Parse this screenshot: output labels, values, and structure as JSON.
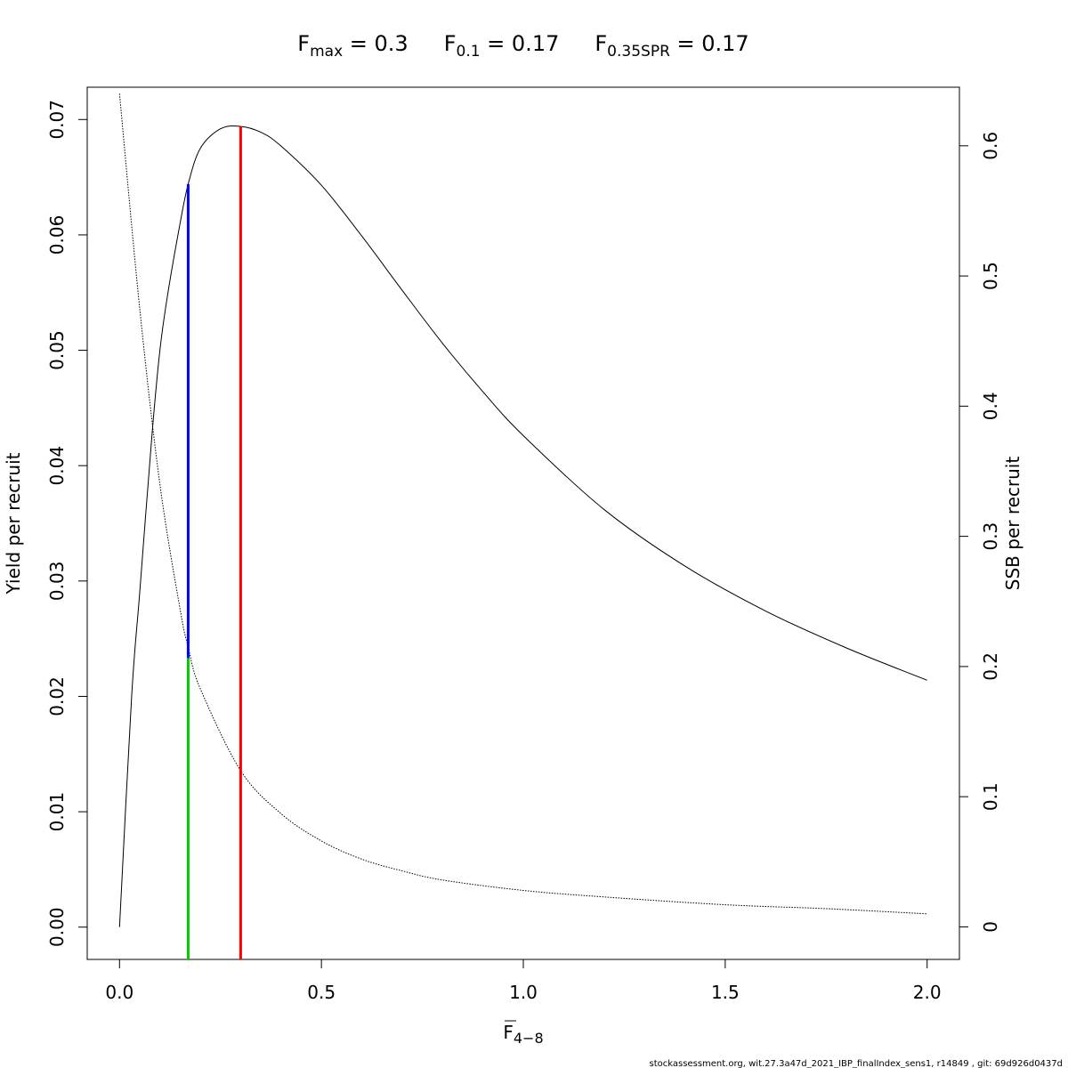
{
  "chart_data": {
    "type": "line",
    "title": {
      "fmax": {
        "main": "F",
        "sub": "max",
        "rest": " = 0.3"
      },
      "f01": {
        "main": "F",
        "sub": "0.1",
        "rest": " = 0.17"
      },
      "fspr": {
        "main": "F",
        "sub": "0.35SPR",
        "rest": " = 0.17"
      }
    },
    "xlabel": {
      "main": "F",
      "sub": "4−8"
    },
    "ylabel_left": "Yield per recruit",
    "ylabel_right": "SSB per recruit",
    "xlim": [
      -0.08,
      2.08
    ],
    "ylim_left": [
      -0.0028,
      0.0728
    ],
    "ylim_right": [
      -0.025,
      0.645
    ],
    "x_ticks": [
      {
        "value": 0.0,
        "label": "0.0"
      },
      {
        "value": 0.5,
        "label": "0.5"
      },
      {
        "value": 1.0,
        "label": "1.0"
      },
      {
        "value": 1.5,
        "label": "1.5"
      },
      {
        "value": 2.0,
        "label": "2.0"
      }
    ],
    "y_left_ticks": [
      {
        "value": 0.0,
        "label": "0.00"
      },
      {
        "value": 0.01,
        "label": "0.01"
      },
      {
        "value": 0.02,
        "label": "0.02"
      },
      {
        "value": 0.03,
        "label": "0.03"
      },
      {
        "value": 0.04,
        "label": "0.04"
      },
      {
        "value": 0.05,
        "label": "0.05"
      },
      {
        "value": 0.06,
        "label": "0.06"
      },
      {
        "value": 0.07,
        "label": "0.07"
      }
    ],
    "y_right_ticks": [
      {
        "value": 0.0,
        "label": "0"
      },
      {
        "value": 0.1,
        "label": "0.1"
      },
      {
        "value": 0.2,
        "label": "0.2"
      },
      {
        "value": 0.3,
        "label": "0.3"
      },
      {
        "value": 0.4,
        "label": "0.4"
      },
      {
        "value": 0.5,
        "label": "0.5"
      },
      {
        "value": 0.6,
        "label": "0.6"
      }
    ],
    "series": [
      {
        "axis": "left",
        "style": "solid",
        "color": "#000000",
        "x": [
          0.0,
          0.03,
          0.05,
          0.08,
          0.1,
          0.12,
          0.15,
          0.17,
          0.2,
          0.25,
          0.3,
          0.35,
          0.4,
          0.5,
          0.6,
          0.7,
          0.8,
          0.9,
          1.0,
          1.2,
          1.4,
          1.6,
          1.8,
          2.0
        ],
        "y": [
          0.0,
          0.02,
          0.029,
          0.0425,
          0.05,
          0.055,
          0.061,
          0.0644,
          0.0675,
          0.0692,
          0.0694,
          0.0689,
          0.0677,
          0.0643,
          0.0599,
          0.0552,
          0.0506,
          0.0464,
          0.0426,
          0.0362,
          0.0313,
          0.0274,
          0.0242,
          0.0214
        ]
      },
      {
        "axis": "right",
        "style": "dotted",
        "color": "#000000",
        "x": [
          0.0,
          0.05,
          0.1,
          0.15,
          0.17,
          0.2,
          0.3,
          0.4,
          0.5,
          0.6,
          0.7,
          0.8,
          1.0,
          1.2,
          1.5,
          1.75,
          2.0
        ],
        "y": [
          0.64,
          0.475,
          0.34,
          0.244,
          0.215,
          0.183,
          0.12,
          0.087,
          0.066,
          0.052,
          0.043,
          0.036,
          0.028,
          0.023,
          0.017,
          0.014,
          0.01
        ]
      }
    ],
    "reference_lines": [
      {
        "name": "F0.1",
        "x": 0.17,
        "from_left": 0.0233,
        "to_left": 0.0644,
        "color": "#0000ff"
      },
      {
        "name": "F0.35SPR",
        "x": 0.17,
        "from_left": -0.0028,
        "to_left": 0.0233,
        "color": "#00cc00"
      },
      {
        "name": "Fmax",
        "x": 0.3,
        "from_left": -0.0028,
        "to_left": 0.0694,
        "color": "#ff0000"
      }
    ]
  },
  "footer": "stockassessment.org, wit.27.3a47d_2021_IBP_finalIndex_sens1, r14849 , git: 69d926d0437d"
}
